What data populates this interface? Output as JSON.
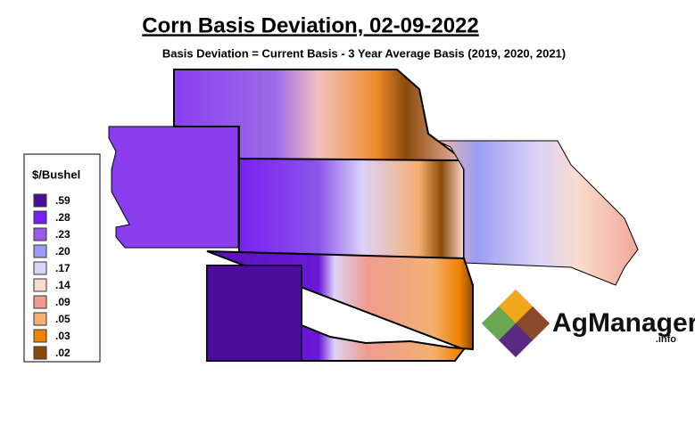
{
  "title": "Corn Basis Deviation, 02-09-2022",
  "subtitle": "Basis Deviation = Current Basis - 3 Year Average Basis (2019, 2020, 2021)",
  "legend": {
    "title": "$/Bushel",
    "items": [
      {
        "label": ".59",
        "color": "#4b0e9c"
      },
      {
        "label": ".28",
        "color": "#7a1ff0"
      },
      {
        "label": ".23",
        "color": "#9d5ae8"
      },
      {
        "label": ".20",
        "color": "#9a9df2"
      },
      {
        "label": ".17",
        "color": "#dcd2f8"
      },
      {
        "label": ".14",
        "color": "#f8dccf"
      },
      {
        "label": ".09",
        "color": "#ef9c90"
      },
      {
        "label": ".05",
        "color": "#f4b072"
      },
      {
        "label": ".03",
        "color": "#ef8300"
      },
      {
        "label": ".02",
        "color": "#8b4a0a"
      }
    ]
  },
  "logo": {
    "name": "AgManager",
    "suffix": ".info"
  }
}
